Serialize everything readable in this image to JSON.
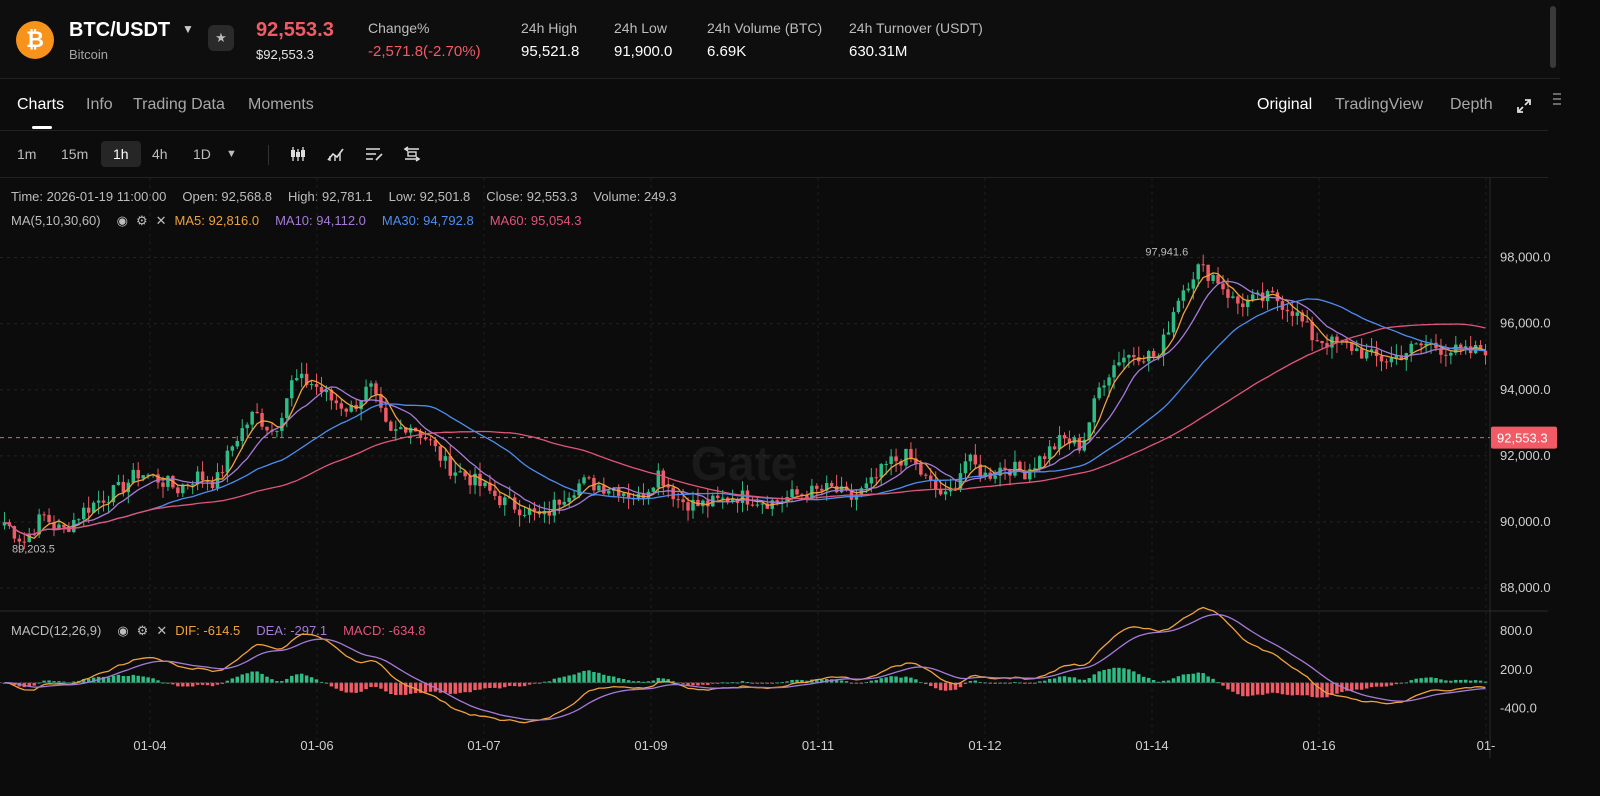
{
  "header": {
    "coin_symbol": "₿",
    "pair": "BTC/USDT",
    "coin_name": "Bitcoin",
    "price": "92,553.3",
    "price_usd": "$92,553.3",
    "change_label": "Change%",
    "change_value": "-2,571.8(-2.70%)",
    "high_label": "24h High",
    "high_value": "95,521.8",
    "low_label": "24h Low",
    "low_value": "91,900.0",
    "volume_label": "24h Volume (BTC)",
    "volume_value": "6.69K",
    "turnover_label": "24h Turnover (USDT)",
    "turnover_value": "630.31M"
  },
  "tabs": [
    "Charts",
    "Info",
    "Trading Data",
    "Moments"
  ],
  "views": [
    "Original",
    "TradingView",
    "Depth"
  ],
  "intervals": [
    "1m",
    "15m",
    "1h",
    "4h",
    "1D"
  ],
  "active_interval": "1h",
  "ohlc": {
    "time": "Time: 2026-01-19 11:00:00",
    "open": "Open: 92,568.8",
    "high": "High: 92,781.1",
    "low": "Low: 92,501.8",
    "close": "Close: 92,553.3",
    "volume": "Volume: 249.3"
  },
  "ma": {
    "label": "MA(5,10,30,60)",
    "ma5": "MA5: 92,816.0",
    "ma10": "MA10: 94,112.0",
    "ma30": "MA30: 94,792.8",
    "ma60": "MA60: 95,054.3"
  },
  "macd": {
    "label": "MACD(12,26,9)",
    "dif": "DIF: -614.5",
    "dea": "DEA: -297.1",
    "macd": "MACD: -634.8"
  },
  "watermark": "Gate",
  "colors": {
    "up": "#2ebd85",
    "down": "#f25b65",
    "ma5": "#f0a23a",
    "ma10": "#a57bd8",
    "ma30": "#4d8ef0",
    "ma60": "#e0557b"
  },
  "chart_data": {
    "type": "candlestick",
    "x_tick_labels": [
      "01-04",
      "01-06",
      "01-07",
      "01-09",
      "01-11",
      "01-12",
      "01-14",
      "01-16",
      "01-"
    ],
    "price_ticks": [
      98000,
      96000,
      94000,
      92000,
      90000,
      88000
    ],
    "price_tick_labels": [
      "98,000.0",
      "96,000.0",
      "94,000.0",
      "92,000.0",
      "90,000.0",
      "88,000.0"
    ],
    "ylim": [
      87400,
      99800
    ],
    "last_price": 92553.3,
    "last_price_label": "92,553.3",
    "max_label": "97,941.6",
    "min_label": "89,203.5",
    "close_path": [
      [
        0,
        90000
      ],
      [
        2,
        89400
      ],
      [
        4,
        90200
      ],
      [
        6,
        89700
      ],
      [
        8,
        90300
      ],
      [
        10,
        90700
      ],
      [
        12,
        91000
      ],
      [
        14,
        91500
      ],
      [
        16,
        91300
      ],
      [
        18,
        91000
      ],
      [
        20,
        91400
      ],
      [
        22,
        91200
      ],
      [
        24,
        92500
      ],
      [
        26,
        93300
      ],
      [
        28,
        92700
      ],
      [
        30,
        94300
      ],
      [
        32,
        94200
      ],
      [
        34,
        93700
      ],
      [
        36,
        93400
      ],
      [
        38,
        94100
      ],
      [
        40,
        92600
      ],
      [
        42,
        93000
      ],
      [
        44,
        92500
      ],
      [
        46,
        91700
      ],
      [
        48,
        91400
      ],
      [
        50,
        91000
      ],
      [
        52,
        90600
      ],
      [
        54,
        90400
      ],
      [
        56,
        90100
      ],
      [
        58,
        90800
      ],
      [
        60,
        91200
      ],
      [
        62,
        91100
      ],
      [
        64,
        91000
      ],
      [
        66,
        90700
      ],
      [
        68,
        91500
      ],
      [
        70,
        90700
      ],
      [
        72,
        90500
      ],
      [
        74,
        90600
      ],
      [
        76,
        90800
      ],
      [
        78,
        90700
      ],
      [
        80,
        90600
      ],
      [
        82,
        90800
      ],
      [
        84,
        90900
      ],
      [
        86,
        91000
      ],
      [
        88,
        90700
      ],
      [
        90,
        91100
      ],
      [
        92,
        91800
      ],
      [
        94,
        92000
      ],
      [
        96,
        91200
      ],
      [
        98,
        90700
      ],
      [
        100,
        91900
      ],
      [
        102,
        91400
      ],
      [
        104,
        91700
      ],
      [
        106,
        91500
      ],
      [
        108,
        92000
      ],
      [
        110,
        92500
      ],
      [
        112,
        92300
      ],
      [
        114,
        94200
      ],
      [
        116,
        95000
      ],
      [
        118,
        95100
      ],
      [
        120,
        95000
      ],
      [
        122,
        96800
      ],
      [
        124,
        97700
      ],
      [
        126,
        97400
      ],
      [
        128,
        96600
      ],
      [
        130,
        96700
      ],
      [
        132,
        96800
      ],
      [
        134,
        96400
      ],
      [
        136,
        95600
      ],
      [
        138,
        95400
      ],
      [
        140,
        95300
      ],
      [
        142,
        95000
      ],
      [
        144,
        94900
      ],
      [
        146,
        95200
      ],
      [
        148,
        95400
      ],
      [
        150,
        95200
      ],
      [
        152,
        95100
      ],
      [
        154,
        95250
      ]
    ],
    "macd_ticks": [
      800,
      200,
      -400
    ],
    "macd_tick_labels": [
      "800.0",
      "200.0",
      "-400.0"
    ]
  }
}
